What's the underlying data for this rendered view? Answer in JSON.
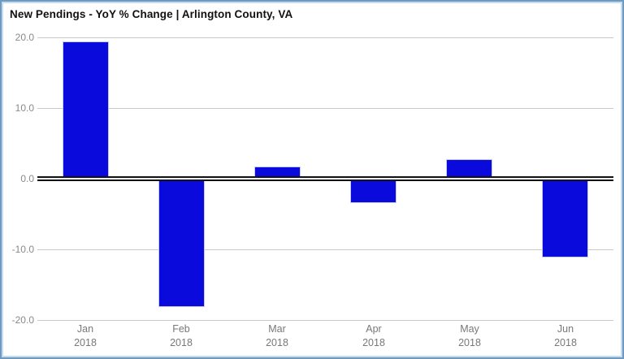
{
  "chart_data": {
    "type": "bar",
    "title": "New Pendings - YoY % Change | Arlington County, VA",
    "categories": [
      "Jan 2018",
      "Feb 2018",
      "Mar 2018",
      "Apr 2018",
      "May 2018",
      "Jun 2018"
    ],
    "values": [
      19.4,
      -18.2,
      1.7,
      -3.4,
      2.8,
      -11.2
    ],
    "xlabel": "",
    "ylabel": "",
    "ylim": [
      -20,
      20
    ],
    "y_ticks": [
      20.0,
      10.0,
      0.0,
      -10.0,
      -20.0
    ],
    "y_tick_labels": [
      "20.0",
      "10.0",
      "0.0",
      "-10.0",
      "-20.0"
    ],
    "grid": true,
    "legend_position": "none",
    "bar_color": "#0a0adc",
    "zero_line_color": "#000000",
    "gridline_color": "#c9c9c9",
    "frame_border_color": "#6f9abd",
    "tick_label_color": "#8a8a8a"
  }
}
